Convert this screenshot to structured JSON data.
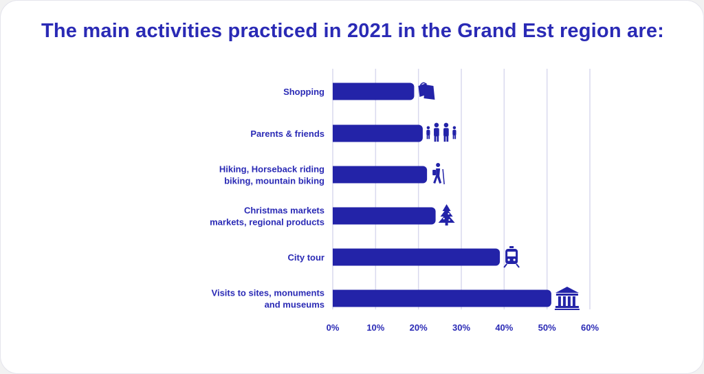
{
  "chart_data": {
    "type": "bar",
    "orientation": "horizontal",
    "title": "The main activities practiced in 2021 in the Grand Est region are:",
    "categories": [
      [
        "Shopping"
      ],
      [
        "Parents & friends"
      ],
      [
        "Hiking, Horseback riding",
        "biking, mountain biking"
      ],
      [
        "Christmas markets",
        "markets, regional products"
      ],
      [
        "City tour"
      ],
      [
        "Visits to sites, monuments",
        "and museums"
      ]
    ],
    "values": [
      19,
      21,
      22,
      24,
      39,
      51
    ],
    "xlim": [
      0,
      60
    ],
    "xticks": [
      0,
      10,
      20,
      30,
      40,
      50,
      60
    ],
    "xtick_labels": [
      "0%",
      "10%",
      "20%",
      "30%",
      "40%",
      "50%",
      "60%"
    ],
    "grid": "vertical",
    "icons": [
      "shopping-bags-icon",
      "family-icon",
      "hiker-icon",
      "christmas-tree-icon",
      "train-icon",
      "museum-icon"
    ]
  },
  "colors": {
    "bar": "#2323a8",
    "text": "#2a2ab5",
    "grid": "#d9d9ee"
  }
}
